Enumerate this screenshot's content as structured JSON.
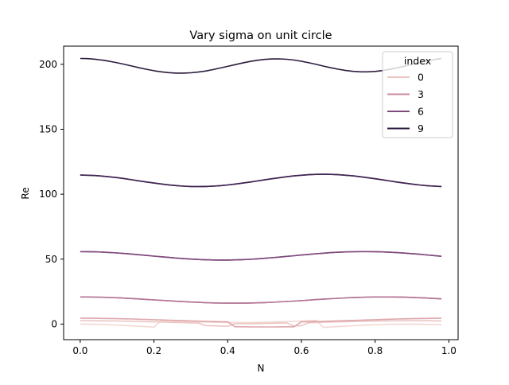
{
  "chart_data": {
    "type": "line",
    "title": "Vary sigma on unit circle",
    "xlabel": "N",
    "ylabel": "Re",
    "xlim": [
      -0.045,
      1.025
    ],
    "ylim": [
      -12,
      214
    ],
    "xticks": [
      0.0,
      0.2,
      0.4,
      0.6,
      0.8,
      1.0
    ],
    "xtick_labels": [
      "0.0",
      "0.2",
      "0.4",
      "0.6",
      "0.8",
      "1.0"
    ],
    "yticks": [
      0,
      50,
      100,
      150,
      200
    ],
    "ytick_labels": [
      "0",
      "50",
      "100",
      "150",
      "200"
    ],
    "grid": false,
    "legend": {
      "title": "index",
      "placement": "top-right",
      "entries": [
        {
          "label": "0",
          "color": "#ecc5c3"
        },
        {
          "label": "3",
          "color": "#c98aa0"
        },
        {
          "label": "6",
          "color": "#7e4a7d"
        },
        {
          "label": "9",
          "color": "#2b1b3d"
        }
      ]
    },
    "x": [
      0.0,
      0.02,
      0.04,
      0.06,
      0.08,
      0.1,
      0.12,
      0.14,
      0.16,
      0.18,
      0.2,
      0.22,
      0.24,
      0.26,
      0.28,
      0.3,
      0.32,
      0.34,
      0.36,
      0.38,
      0.4,
      0.42,
      0.44,
      0.46,
      0.48,
      0.5,
      0.52,
      0.54,
      0.56,
      0.58,
      0.6,
      0.62,
      0.64,
      0.66,
      0.68,
      0.7,
      0.72,
      0.74,
      0.76,
      0.78,
      0.8,
      0.82,
      0.84,
      0.86,
      0.88,
      0.9,
      0.92,
      0.94,
      0.96,
      0.98
    ],
    "series": [
      {
        "values": [
          -0.1,
          -0.13,
          -0.22,
          -0.37,
          -0.57,
          -0.81,
          -1.09,
          -1.39,
          -1.71,
          -2.04,
          -2.38,
          2.71,
          2.45,
          2.21,
          2.0,
          1.8,
          1.63,
          1.49,
          1.37,
          1.29,
          1.23,
          1.2,
          1.21,
          1.24,
          1.31,
          1.41,
          1.54,
          1.69,
          1.87,
          2.08,
          2.31,
          2.56,
          2.82,
          -2.6,
          -2.27,
          -1.94,
          -1.62,
          -1.31,
          -1.02,
          -0.76,
          -0.54,
          -0.35,
          -0.21,
          -0.12,
          -0.1,
          -0.1,
          -0.13,
          -0.22,
          -0.37,
          -0.57
        ],
        "color": "#f3d8d2"
      },
      {
        "values": [
          2.61,
          2.6,
          2.57,
          2.52,
          2.45,
          2.36,
          2.26,
          2.14,
          2.01,
          1.87,
          1.72,
          1.57,
          1.41,
          1.25,
          1.09,
          0.93,
          0.78,
          -1.15,
          -1.35,
          -1.52,
          -1.65,
          0.24,
          0.26,
          0.3,
          0.37,
          0.47,
          0.6,
          0.75,
          0.93,
          -1.39,
          -1.22,
          1.07,
          1.24,
          1.41,
          1.57,
          1.72,
          1.87,
          2.01,
          2.14,
          2.26,
          2.36,
          2.45,
          2.52,
          2.57,
          2.6,
          2.61,
          2.6,
          2.57,
          2.52,
          2.45
        ],
        "color": "#ecc5c3"
      },
      {
        "values": [
          4.5,
          4.49,
          4.45,
          4.38,
          4.29,
          4.18,
          4.05,
          3.9,
          3.74,
          3.57,
          3.39,
          3.2,
          3.01,
          2.82,
          2.63,
          2.45,
          2.27,
          2.11,
          1.96,
          1.82,
          1.7,
          -2.05,
          -2.1,
          -2.14,
          -2.17,
          -2.18,
          -2.17,
          -2.14,
          -2.1,
          -2.05,
          1.7,
          1.82,
          1.96,
          2.11,
          2.27,
          2.45,
          2.63,
          2.82,
          3.01,
          3.2,
          3.39,
          3.57,
          3.74,
          3.9,
          4.05,
          4.18,
          4.29,
          4.38,
          4.45,
          4.49
        ],
        "color": "#dea7ac"
      },
      {
        "values": [
          20.9,
          20.87,
          20.79,
          20.66,
          20.48,
          20.25,
          19.98,
          19.68,
          19.35,
          19.0,
          18.64,
          18.28,
          17.92,
          17.58,
          17.26,
          16.97,
          16.71,
          16.49,
          16.32,
          16.19,
          16.12,
          16.1,
          16.14,
          16.23,
          16.37,
          16.56,
          16.8,
          17.08,
          17.39,
          17.73,
          18.1,
          18.47,
          18.84,
          19.2,
          19.55,
          19.87,
          20.16,
          20.41,
          20.61,
          20.76,
          20.86,
          20.9,
          20.88,
          20.81,
          20.69,
          20.52,
          20.3,
          20.04,
          19.75,
          19.43
        ],
        "color": "#c98aa0"
      },
      {
        "values": [
          20.9,
          20.87,
          20.79,
          20.66,
          20.48,
          20.25,
          19.98,
          19.68,
          19.35,
          19.0,
          18.64,
          18.28,
          17.92,
          17.58,
          17.26,
          16.97,
          16.71,
          16.49,
          16.32,
          16.19,
          16.12,
          16.1,
          16.14,
          16.23,
          16.37,
          16.56,
          16.8,
          17.08,
          17.39,
          17.73,
          18.1,
          18.47,
          18.84,
          19.2,
          19.55,
          19.87,
          20.16,
          20.41,
          20.61,
          20.76,
          20.86,
          20.9,
          20.88,
          20.81,
          20.69,
          20.52,
          20.3,
          20.04,
          19.75,
          19.43
        ],
        "color": "#b27596"
      },
      {
        "values": [
          55.8,
          55.76,
          55.63,
          55.42,
          55.13,
          54.77,
          54.35,
          53.88,
          53.38,
          52.86,
          52.33,
          51.81,
          51.31,
          50.84,
          50.42,
          50.05,
          49.74,
          49.51,
          49.36,
          49.29,
          49.31,
          49.42,
          49.61,
          49.88,
          50.22,
          50.63,
          51.09,
          51.59,
          52.11,
          52.64,
          53.17,
          53.68,
          54.16,
          54.6,
          54.98,
          55.29,
          55.53,
          55.7,
          55.78,
          55.79,
          55.71,
          55.56,
          55.33,
          55.03,
          54.66,
          54.23,
          53.76,
          53.25,
          52.72,
          52.19
        ],
        "color": "#9a5f8c"
      },
      {
        "values": [
          55.8,
          55.76,
          55.63,
          55.42,
          55.13,
          54.77,
          54.35,
          53.88,
          53.38,
          52.86,
          52.33,
          51.81,
          51.31,
          50.84,
          50.42,
          50.05,
          49.74,
          49.51,
          49.36,
          49.29,
          49.31,
          49.42,
          49.61,
          49.88,
          50.22,
          50.63,
          51.09,
          51.59,
          52.11,
          52.64,
          53.17,
          53.68,
          54.16,
          54.6,
          54.98,
          55.29,
          55.53,
          55.7,
          55.78,
          55.79,
          55.71,
          55.56,
          55.33,
          55.03,
          54.66,
          54.23,
          53.76,
          53.25,
          52.72,
          52.19
        ],
        "color": "#7e4a7d"
      },
      {
        "values": [
          114.7,
          114.61,
          114.36,
          113.95,
          113.4,
          112.73,
          111.96,
          111.13,
          110.27,
          109.41,
          108.59,
          107.83,
          107.17,
          106.63,
          106.22,
          105.97,
          105.88,
          105.96,
          106.2,
          106.6,
          107.13,
          107.78,
          108.52,
          109.33,
          110.19,
          111.06,
          111.91,
          112.72,
          113.46,
          114.1,
          114.62,
          115.01,
          115.25,
          115.33,
          115.25,
          115.01,
          114.62,
          114.1,
          113.46,
          112.72,
          111.91,
          111.06,
          110.19,
          109.33,
          108.52,
          107.78,
          107.13,
          106.6,
          106.2,
          105.96
        ],
        "color": "#5c3568"
      },
      {
        "values": [
          114.7,
          114.61,
          114.36,
          113.95,
          113.4,
          112.73,
          111.96,
          111.13,
          110.27,
          109.41,
          108.59,
          107.83,
          107.17,
          106.63,
          106.22,
          105.97,
          105.88,
          105.96,
          106.2,
          106.6,
          107.13,
          107.78,
          108.52,
          109.33,
          110.19,
          111.06,
          111.91,
          112.72,
          113.46,
          114.1,
          114.62,
          115.01,
          115.25,
          115.33,
          115.25,
          115.01,
          114.62,
          114.1,
          113.46,
          112.72,
          111.91,
          111.06,
          110.19,
          109.33,
          108.52,
          107.78,
          107.13,
          106.6,
          106.2,
          105.96
        ],
        "color": "#3f2552"
      },
      {
        "values": [
          204.5,
          204.36,
          203.93,
          203.24,
          202.31,
          201.2,
          199.96,
          198.66,
          197.37,
          196.16,
          195.09,
          194.22,
          193.59,
          193.25,
          193.21,
          193.48,
          194.04,
          194.86,
          195.91,
          197.13,
          198.44,
          199.76,
          201.03,
          202.17,
          203.11,
          203.79,
          204.16,
          204.2,
          203.89,
          203.26,
          202.34,
          201.21,
          199.95,
          198.64,
          197.37,
          196.22,
          195.27,
          194.59,
          194.23,
          194.21,
          194.54,
          195.19,
          196.12,
          197.28,
          198.59,
          199.97,
          201.33,
          202.58,
          203.64,
          204.43
        ],
        "color": "#2b1b3d"
      }
    ]
  }
}
